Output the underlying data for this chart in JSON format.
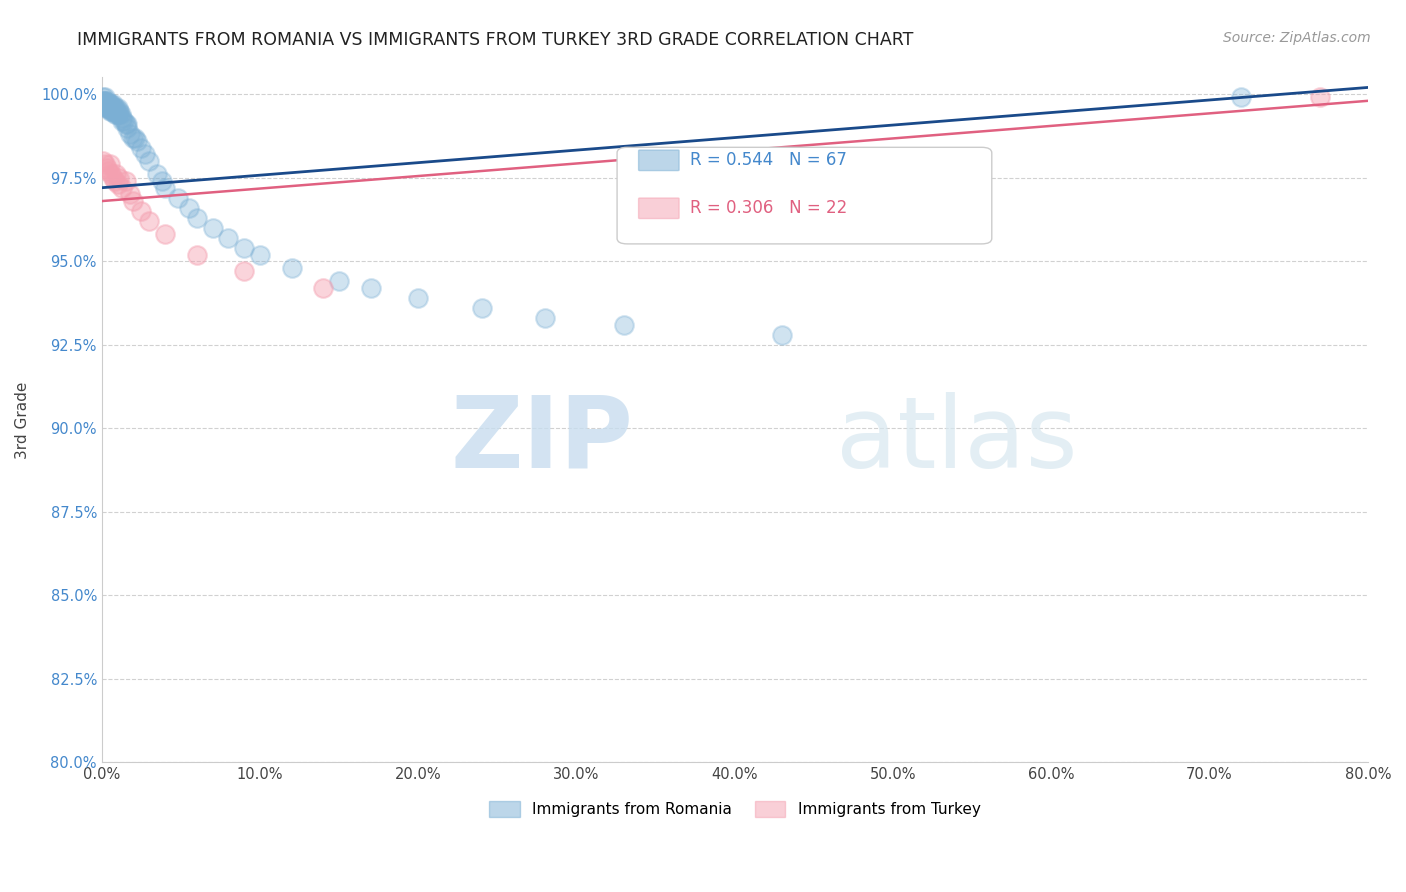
{
  "title": "IMMIGRANTS FROM ROMANIA VS IMMIGRANTS FROM TURKEY 3RD GRADE CORRELATION CHART",
  "source": "Source: ZipAtlas.com",
  "ylabel": "3rd Grade",
  "legend_romania": "Immigrants from Romania",
  "legend_turkey": "Immigrants from Turkey",
  "romania_R": 0.544,
  "romania_N": 67,
  "turkey_R": 0.306,
  "turkey_N": 22,
  "romania_color": "#7BAFD4",
  "turkey_color": "#F4A0B0",
  "trend_romania_color": "#1A4A8A",
  "trend_turkey_color": "#E06080",
  "xlim": [
    0.0,
    0.8
  ],
  "ylim": [
    0.8,
    1.005
  ],
  "xticks": [
    0.0,
    0.1,
    0.2,
    0.3,
    0.4,
    0.5,
    0.6,
    0.7,
    0.8
  ],
  "xticklabels": [
    "0.0%",
    "10.0%",
    "20.0%",
    "30.0%",
    "40.0%",
    "50.0%",
    "60.0%",
    "70.0%",
    "80.0%"
  ],
  "yticks": [
    0.8,
    0.825,
    0.85,
    0.875,
    0.9,
    0.925,
    0.95,
    0.975,
    1.0
  ],
  "yticklabels": [
    "80.0%",
    "82.5%",
    "85.0%",
    "87.5%",
    "90.0%",
    "92.5%",
    "95.0%",
    "97.5%",
    "100.0%"
  ],
  "romania_x": [
    0.001,
    0.001,
    0.001,
    0.002,
    0.002,
    0.002,
    0.002,
    0.002,
    0.003,
    0.003,
    0.003,
    0.003,
    0.004,
    0.004,
    0.004,
    0.005,
    0.005,
    0.005,
    0.005,
    0.006,
    0.006,
    0.006,
    0.007,
    0.007,
    0.007,
    0.008,
    0.008,
    0.008,
    0.009,
    0.009,
    0.01,
    0.01,
    0.011,
    0.011,
    0.012,
    0.013,
    0.013,
    0.014,
    0.015,
    0.016,
    0.016,
    0.018,
    0.02,
    0.021,
    0.022,
    0.025,
    0.027,
    0.03,
    0.035,
    0.038,
    0.04,
    0.048,
    0.055,
    0.06,
    0.07,
    0.08,
    0.09,
    0.1,
    0.12,
    0.15,
    0.17,
    0.2,
    0.24,
    0.28,
    0.33,
    0.43,
    0.72
  ],
  "romania_y": [
    0.999,
    0.998,
    0.998,
    0.999,
    0.998,
    0.998,
    0.997,
    0.997,
    0.998,
    0.997,
    0.997,
    0.996,
    0.997,
    0.996,
    0.996,
    0.997,
    0.997,
    0.996,
    0.995,
    0.997,
    0.996,
    0.995,
    0.997,
    0.996,
    0.995,
    0.996,
    0.995,
    0.994,
    0.996,
    0.994,
    0.996,
    0.994,
    0.995,
    0.994,
    0.994,
    0.993,
    0.992,
    0.992,
    0.991,
    0.991,
    0.99,
    0.988,
    0.987,
    0.987,
    0.986,
    0.984,
    0.982,
    0.98,
    0.976,
    0.974,
    0.972,
    0.969,
    0.966,
    0.963,
    0.96,
    0.957,
    0.954,
    0.952,
    0.948,
    0.944,
    0.942,
    0.939,
    0.936,
    0.933,
    0.931,
    0.928,
    0.999
  ],
  "turkey_x": [
    0.001,
    0.002,
    0.003,
    0.004,
    0.005,
    0.006,
    0.007,
    0.008,
    0.009,
    0.01,
    0.011,
    0.013,
    0.015,
    0.018,
    0.02,
    0.025,
    0.03,
    0.04,
    0.06,
    0.09,
    0.14,
    0.77
  ],
  "turkey_y": [
    0.98,
    0.979,
    0.978,
    0.977,
    0.979,
    0.976,
    0.975,
    0.974,
    0.976,
    0.973,
    0.975,
    0.972,
    0.974,
    0.97,
    0.968,
    0.965,
    0.962,
    0.958,
    0.952,
    0.947,
    0.942,
    0.999
  ],
  "trend_romania_x0": 0.0,
  "trend_romania_y0": 0.972,
  "trend_romania_x1": 0.8,
  "trend_romania_y1": 1.002,
  "trend_turkey_x0": 0.0,
  "trend_turkey_y0": 0.968,
  "trend_turkey_x1": 0.8,
  "trend_turkey_y1": 0.998
}
